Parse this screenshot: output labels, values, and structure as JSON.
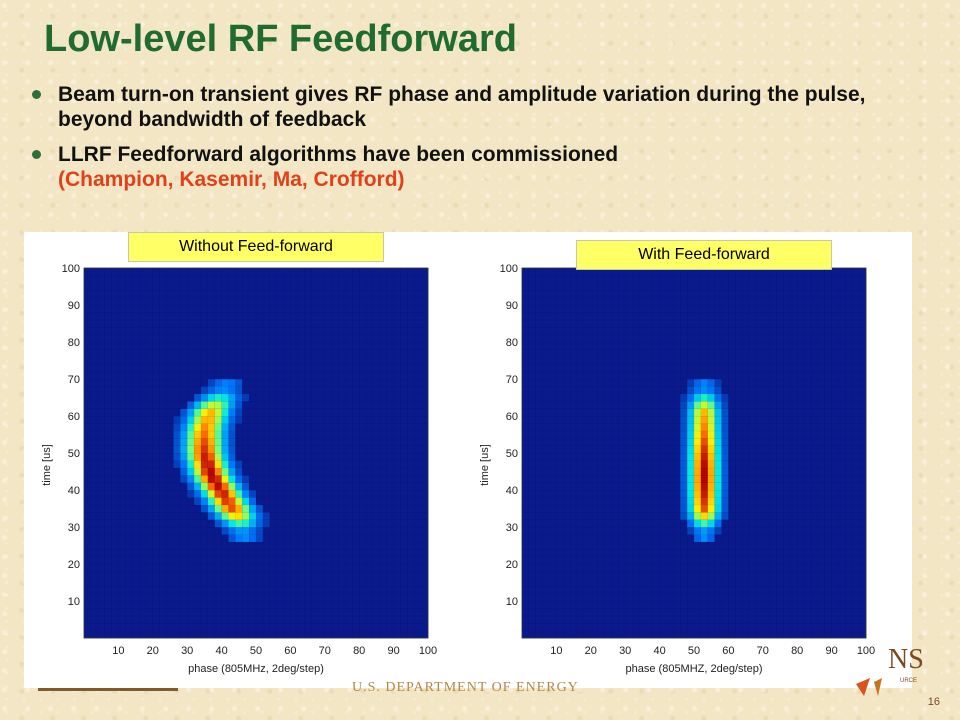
{
  "slide": {
    "title": "Low-level RF Feedforward",
    "bullets": [
      {
        "text": "Beam turn-on transient gives RF phase and amplitude variation during the pulse, beyond bandwidth of feedback",
        "highlight": ""
      },
      {
        "text": "LLRF Feedforward algorithms have been commissioned",
        "highlight": "(Champion, Kasemir, Ma, Crofford)"
      }
    ],
    "footer": "U.S. DEPARTMENT OF ENERGY",
    "page_number": "16",
    "colors": {
      "title": "#1f6b30",
      "highlight": "#e0401a",
      "label_bg": "#ffff66",
      "plot_bg": "#0a1a8c"
    }
  },
  "chart_data": [
    {
      "type": "heatmap",
      "title": "Without Feed-forward",
      "xlabel": "phase (805MHz, 2deg/step)",
      "ylabel": "time [us]",
      "xlim": [
        0,
        100
      ],
      "ylim": [
        0,
        100
      ],
      "xticks": [
        10,
        20,
        30,
        40,
        50,
        60,
        70,
        80,
        90,
        100
      ],
      "yticks": [
        10,
        20,
        30,
        40,
        50,
        60,
        70,
        80,
        90,
        100
      ],
      "ridge": [
        {
          "t": 26,
          "x": 47,
          "w": 2
        },
        {
          "t": 32,
          "x": 45,
          "w": 3
        },
        {
          "t": 38,
          "x": 41,
          "w": 3
        },
        {
          "t": 44,
          "x": 37,
          "w": 3
        },
        {
          "t": 50,
          "x": 35,
          "w": 3
        },
        {
          "t": 56,
          "x": 35,
          "w": 3
        },
        {
          "t": 62,
          "x": 37,
          "w": 3
        },
        {
          "t": 66,
          "x": 40,
          "w": 3
        },
        {
          "t": 70,
          "x": 42,
          "w": 2
        }
      ]
    },
    {
      "type": "heatmap",
      "title": "With Feed-forward",
      "xlabel": "phase (805MHZ, 2deg/step)",
      "ylabel": "time [us]",
      "xlim": [
        0,
        100
      ],
      "ylim": [
        0,
        100
      ],
      "xticks": [
        10,
        20,
        30,
        40,
        50,
        60,
        70,
        80,
        90,
        100
      ],
      "yticks": [
        10,
        20,
        30,
        40,
        50,
        60,
        70,
        80,
        90,
        100
      ],
      "ridge": [
        {
          "t": 26,
          "x": 53,
          "w": 1
        },
        {
          "t": 32,
          "x": 53,
          "w": 2
        },
        {
          "t": 40,
          "x": 53,
          "w": 2
        },
        {
          "t": 50,
          "x": 53,
          "w": 2
        },
        {
          "t": 60,
          "x": 53,
          "w": 2
        },
        {
          "t": 68,
          "x": 53,
          "w": 2
        },
        {
          "t": 70,
          "x": 53,
          "w": 1
        }
      ]
    }
  ]
}
